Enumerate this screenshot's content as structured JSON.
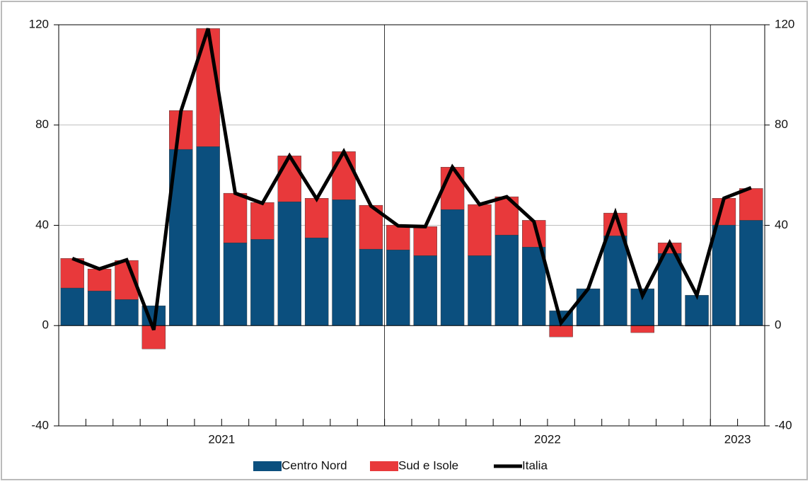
{
  "chart_data": {
    "type": "stacked-bar-line",
    "categories": [
      null,
      null,
      null,
      null,
      null,
      null,
      null,
      null,
      null,
      null,
      null,
      null,
      null,
      null,
      null,
      null,
      null,
      null,
      null,
      null,
      null,
      null,
      null,
      null,
      null,
      null
    ],
    "x_groups": [
      {
        "label": "2021",
        "size": 12
      },
      {
        "label": "2022",
        "size": 12
      },
      {
        "label": "2023",
        "size": 2
      }
    ],
    "series": [
      {
        "name": "Centro Nord",
        "color": "#0b4f7e",
        "kind": "bar",
        "values": [
          15,
          13.8,
          10.4,
          7.9,
          70.3,
          71.4,
          33,
          34.4,
          49.4,
          35,
          50.2,
          30.5,
          30.2,
          27.9,
          46.3,
          27.9,
          36.1,
          31.3,
          5.9,
          14.7,
          35.8,
          14.7,
          28.8,
          12.1,
          40.1,
          42
        ]
      },
      {
        "name": "Sud e Isole",
        "color": "#e8393b",
        "kind": "bar",
        "values": [
          11.8,
          8.8,
          15.6,
          -9.3,
          15.5,
          47.1,
          19.8,
          14.7,
          18.3,
          15.8,
          19.2,
          17.5,
          9.9,
          11.6,
          16.9,
          20.4,
          15.3,
          10.7,
          -4.5,
          -0.2,
          9.1,
          -2.8,
          4.2,
          -0.2,
          10.7,
          12.7
        ]
      },
      {
        "name": "Italia",
        "color": "#000000",
        "kind": "line",
        "values": [
          26.8,
          22.6,
          26.2,
          -1.7,
          85.5,
          118.5,
          52.8,
          48.8,
          67.7,
          50.5,
          69.4,
          47.7,
          39.8,
          39.5,
          63.2,
          48.3,
          51.4,
          41.5,
          1.1,
          14.7,
          44.9,
          11.9,
          33,
          12.1,
          50.8,
          55
        ]
      }
    ],
    "ylim": [
      -40,
      120
    ],
    "yticks": [
      -40,
      0,
      40,
      80,
      120
    ],
    "y2lim": [
      -40,
      120
    ],
    "y2ticks": [
      -40,
      0,
      40,
      80,
      120
    ],
    "grid": true
  }
}
